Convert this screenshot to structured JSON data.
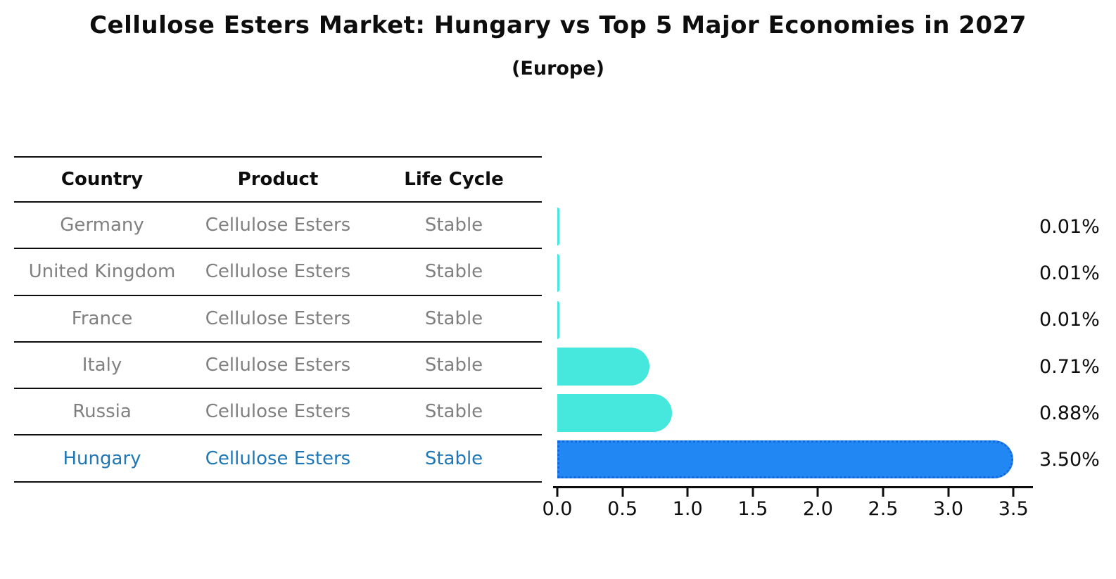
{
  "header": {
    "title": "Cellulose Esters Market: Hungary vs Top 5 Major Economies in 2027",
    "subtitle": "(Europe)"
  },
  "table": {
    "headers": [
      "Country",
      "Product",
      "Life Cycle"
    ],
    "rows": [
      {
        "country": "Germany",
        "product": "Cellulose Esters",
        "life_cycle": "Stable"
      },
      {
        "country": "United Kingdom",
        "product": "Cellulose Esters",
        "life_cycle": "Stable"
      },
      {
        "country": "France",
        "product": "Cellulose Esters",
        "life_cycle": "Stable"
      },
      {
        "country": "Italy",
        "product": "Cellulose Esters",
        "life_cycle": "Stable"
      },
      {
        "country": "Russia",
        "product": "Cellulose Esters",
        "life_cycle": "Stable"
      },
      {
        "country": "Hungary",
        "product": "Cellulose Esters",
        "life_cycle": "Stable"
      }
    ]
  },
  "chart_data": {
    "type": "bar",
    "orientation": "horizontal",
    "title": "Cellulose Esters Market: Hungary vs Top 5 Major Economies in 2027 (Europe)",
    "categories": [
      "Germany",
      "United Kingdom",
      "France",
      "Italy",
      "Russia",
      "Hungary"
    ],
    "values": [
      0.01,
      0.01,
      0.01,
      0.71,
      0.88,
      3.5
    ],
    "value_labels": [
      "0.01%",
      "0.01%",
      "0.01%",
      "0.71%",
      "0.88%",
      "3.50%"
    ],
    "x_ticks": [
      "0.0",
      "0.5",
      "1.0",
      "1.5",
      "2.0",
      "2.5",
      "3.0",
      "3.5"
    ],
    "xlim": [
      0,
      3.65
    ],
    "grid": "off",
    "legend": "none",
    "highlight_index": 5,
    "colors": {
      "bar_default": "#46e8de",
      "bar_highlight": "#2187f2",
      "bar_highlight_border": "#1666dd",
      "highlight_text": "#1f77b4",
      "row_text": "#808080",
      "axis": "#0d0d0d"
    }
  }
}
